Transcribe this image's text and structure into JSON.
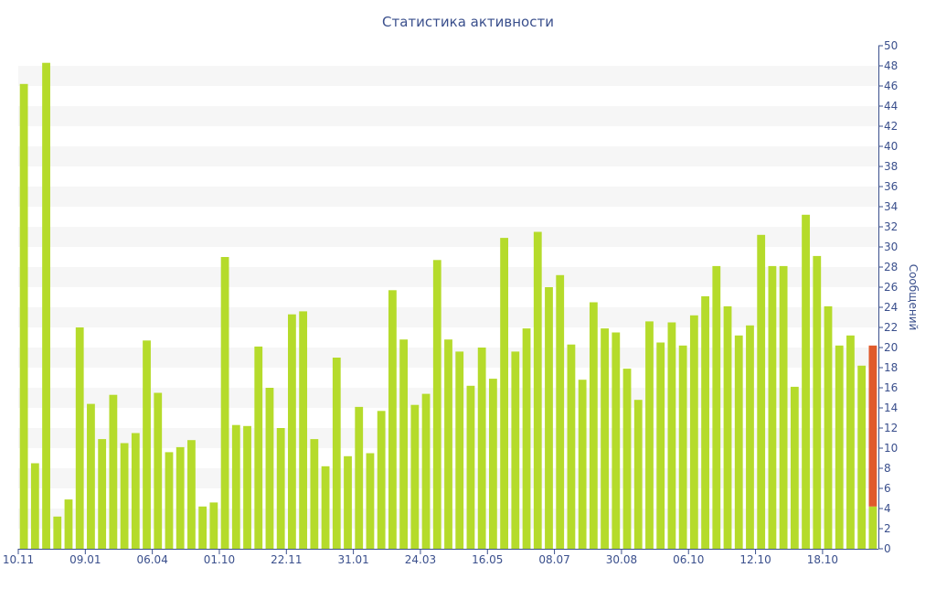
{
  "chart_data": {
    "type": "bar",
    "title": "Статистика активности",
    "xlabel": "",
    "ylabel": "Сообщений",
    "ylim": [
      0,
      50
    ],
    "y_ticks": [
      0,
      2,
      4,
      6,
      8,
      10,
      12,
      14,
      16,
      18,
      20,
      22,
      24,
      26,
      28,
      30,
      32,
      34,
      36,
      38,
      40,
      42,
      44,
      46,
      48,
      50
    ],
    "x_tick_labels": [
      "10.11",
      "09.01",
      "06.04",
      "01.10",
      "22.11",
      "31.01",
      "24.03",
      "16.05",
      "08.07",
      "30.08",
      "06.10",
      "12.10",
      "18.10"
    ],
    "x_tick_indices": [
      0,
      6,
      12,
      18,
      24,
      30,
      36,
      42,
      48,
      54,
      60,
      66,
      72
    ],
    "values": [
      46.2,
      8.5,
      48.3,
      3.2,
      4.9,
      22.0,
      14.4,
      10.9,
      15.3,
      10.5,
      11.5,
      20.7,
      15.5,
      9.6,
      10.1,
      10.8,
      4.2,
      4.6,
      29.0,
      12.3,
      12.2,
      20.1,
      16.0,
      12.0,
      23.3,
      23.6,
      10.9,
      8.2,
      19.0,
      9.2,
      14.1,
      9.5,
      13.7,
      25.7,
      20.8,
      14.3,
      15.4,
      28.7,
      20.8,
      19.6,
      16.2,
      20.0,
      16.9,
      30.9,
      19.6,
      21.9,
      31.5,
      26.0,
      27.2,
      20.3,
      16.8,
      24.5,
      21.9,
      21.5,
      17.9,
      14.8,
      22.6,
      20.5,
      22.5,
      20.2,
      23.2,
      25.1,
      28.1,
      24.1,
      21.2,
      22.2,
      31.2,
      28.1,
      28.1,
      16.1,
      33.2,
      29.1,
      24.1,
      20.2,
      21.2,
      18.2,
      20.2
    ],
    "highlight": {
      "index": 76,
      "lower_value": 4.2
    },
    "colors": {
      "bar": "#b5db2b",
      "highlight": "#e05a2b",
      "axis": "#3a4f8c",
      "band": "#f6f6f6"
    },
    "grid": "alternating horizontal bands",
    "legend": "none",
    "y_axis_position": "right"
  }
}
